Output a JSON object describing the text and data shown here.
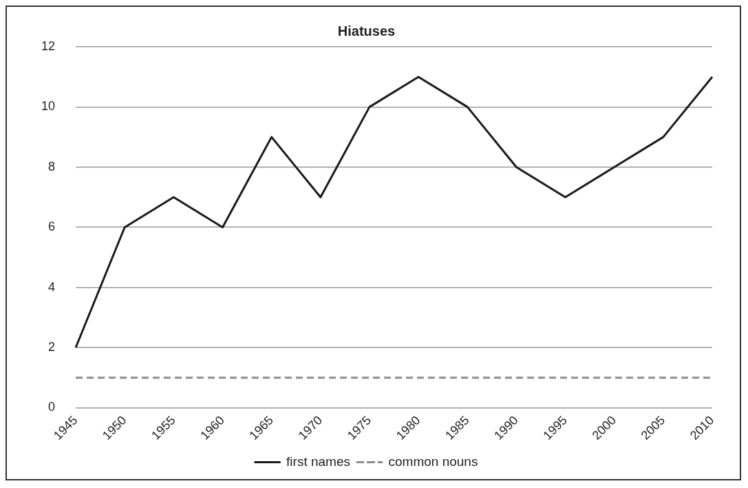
{
  "chart_data": {
    "type": "line",
    "title": "Hiatuses",
    "categories": [
      "1945",
      "1950",
      "1955",
      "1960",
      "1965",
      "1970",
      "1975",
      "1980",
      "1985",
      "1990",
      "1995",
      "2000",
      "2005",
      "2010"
    ],
    "series": [
      {
        "name": "first names",
        "color": "#1a1a1a",
        "line_style": "solid",
        "values": [
          2,
          6,
          7,
          6,
          9,
          7,
          10,
          11,
          10,
          8,
          7,
          8,
          9,
          11
        ]
      },
      {
        "name": "common nouns",
        "color": "#8c8c8c",
        "line_style": "dashed",
        "values": [
          1,
          1,
          1,
          1,
          1,
          1,
          1,
          1,
          1,
          1,
          1,
          1,
          1,
          1
        ]
      }
    ],
    "ylim": [
      0,
      12
    ],
    "yticks": [
      0,
      2,
      4,
      6,
      8,
      10,
      12
    ],
    "grid": "y",
    "legend": "bottom",
    "marker": "none"
  }
}
